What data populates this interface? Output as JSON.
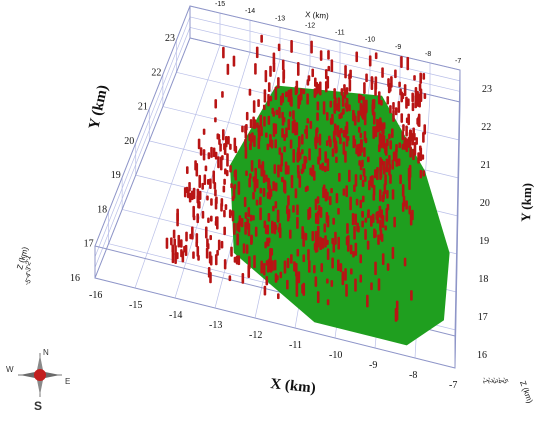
{
  "chart_data": {
    "type": "scatter",
    "projection": "3d-perspective",
    "title": "",
    "x_axis": {
      "label": "X (km)",
      "label_top": "X (km)",
      "range": [
        -16,
        -7
      ],
      "ticks": [
        "-16",
        "-15",
        "-14",
        "-13",
        "-12",
        "-11",
        "-10",
        "-9",
        "-8",
        "-7"
      ]
    },
    "y_axis": {
      "label": "Y (km)",
      "range": [
        16,
        23
      ],
      "ticks": [
        "16",
        "17",
        "18",
        "19",
        "20",
        "21",
        "22",
        "23"
      ]
    },
    "z_axis": {
      "label": "Z (km)",
      "ticks": [
        "-1",
        "-2",
        "-3",
        "-4",
        "-5"
      ],
      "note": "depth axis labels are tiny and mostly illegible"
    },
    "grid": true,
    "surface": {
      "name": "",
      "color": "#1f9f1f",
      "type": "plane"
    },
    "points": {
      "color": "#b81414",
      "glyph": "vertical-bar",
      "count": 900
    },
    "compass": {
      "labels": [
        "N",
        "E",
        "S",
        "W"
      ]
    }
  }
}
